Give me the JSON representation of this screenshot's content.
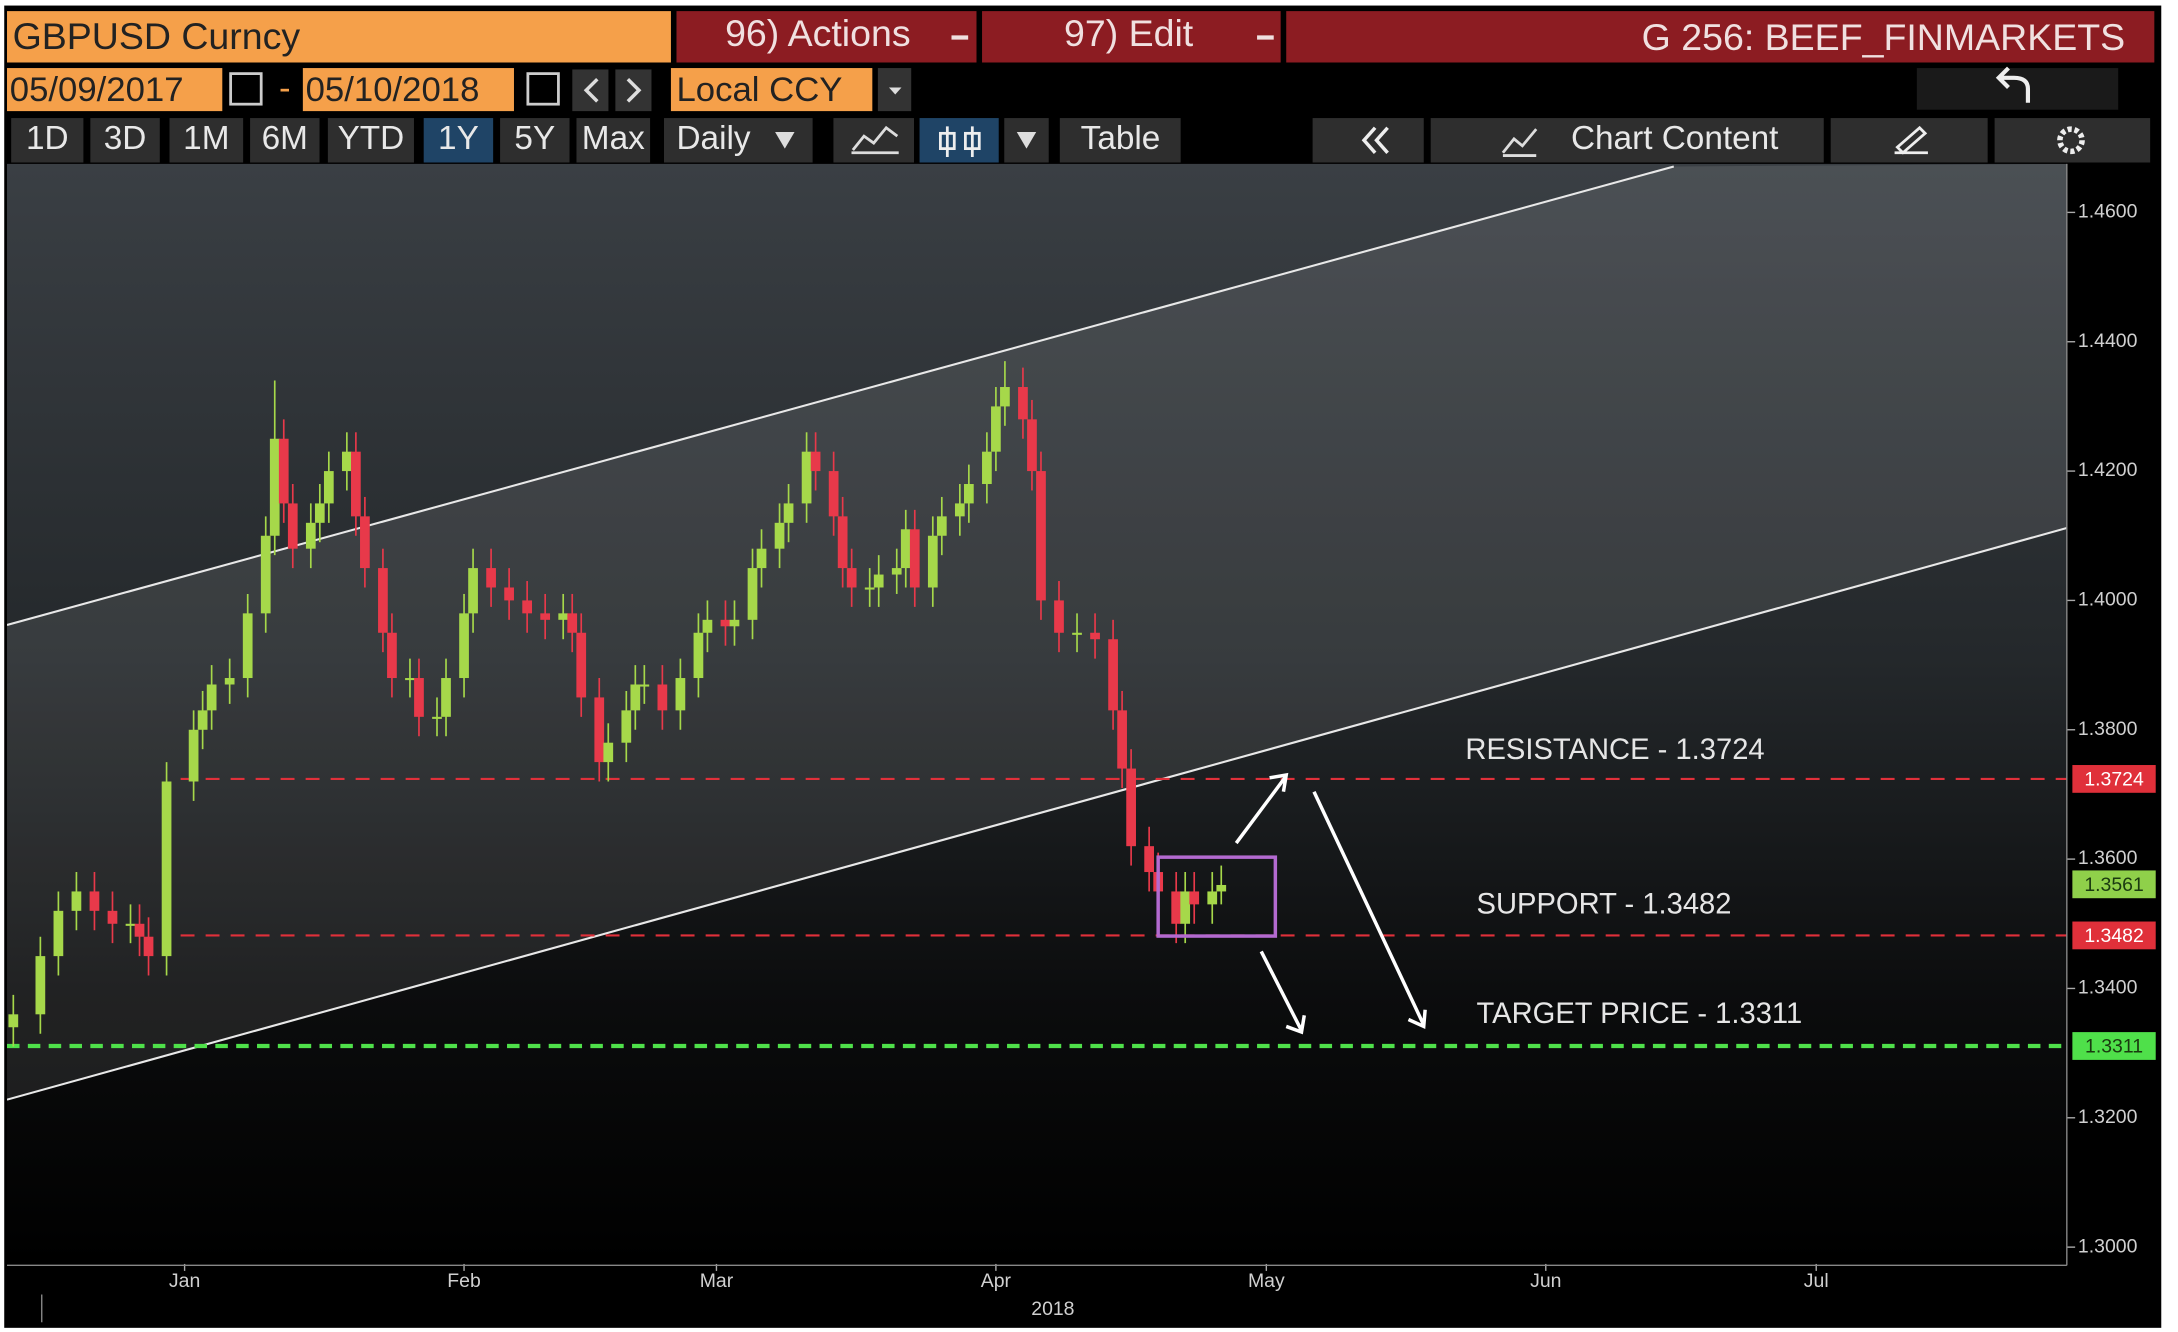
{
  "header": {
    "security": "GBPUSD Curncy",
    "actions": "96) Actions",
    "edit": "97) Edit",
    "page": "G 256: BEEF_FINMARKETS"
  },
  "dates": {
    "start": "05/09/2017",
    "separator": "-",
    "end": "05/10/2018"
  },
  "currency": "Local CCY",
  "ranges": [
    {
      "label": "1D"
    },
    {
      "label": "3D"
    },
    {
      "label": "1M"
    },
    {
      "label": "6M"
    },
    {
      "label": "YTD"
    },
    {
      "label": "1Y",
      "selected": true
    },
    {
      "label": "5Y"
    },
    {
      "label": "Max"
    }
  ],
  "period": "Daily",
  "table": "Table",
  "chart_content": "Chart Content",
  "chart_data": {
    "type": "candlestick",
    "up_color": "#a6d84a",
    "down_color": "#e8394a",
    "xlim": [
      -19.7,
      208.8
    ],
    "ylim": [
      1.2974,
      1.4675
    ],
    "xticks": [
      {
        "value": 0,
        "label": "Jan"
      },
      {
        "value": 31,
        "label": "Feb"
      },
      {
        "value": 59,
        "label": "Mar"
      },
      {
        "value": 90,
        "label": "Apr"
      },
      {
        "value": 120,
        "label": "May"
      },
      {
        "value": 151,
        "label": "Jun"
      },
      {
        "value": 181,
        "label": "Jul"
      }
    ],
    "x_label": "2018",
    "yticks": [
      {
        "value": 1.3,
        "label": "1.3000"
      },
      {
        "value": 1.32,
        "label": "1.3200"
      },
      {
        "value": 1.34,
        "label": "1.3400"
      },
      {
        "value": 1.36,
        "label": "1.3600"
      },
      {
        "value": 1.38,
        "label": "1.3800"
      },
      {
        "value": 1.4,
        "label": "1.4000"
      },
      {
        "value": 1.42,
        "label": "1.4200"
      },
      {
        "value": 1.44,
        "label": "1.4400"
      },
      {
        "value": 1.46,
        "label": "1.4600"
      }
    ],
    "x": [
      -19,
      -16,
      -14,
      -12,
      -10,
      -8,
      -6,
      -5,
      -4,
      -2,
      1,
      2,
      3,
      5,
      7,
      9,
      10,
      11,
      12,
      14,
      15,
      16,
      18,
      19,
      20,
      22,
      23,
      25,
      26,
      28,
      29,
      31,
      32,
      34,
      36,
      38,
      40,
      42,
      43,
      44,
      46,
      47,
      49,
      50,
      51,
      53,
      55,
      57,
      58,
      60,
      61,
      63,
      64,
      66,
      67,
      69,
      70,
      72,
      73,
      74,
      76,
      77,
      79,
      80,
      81,
      83,
      84,
      86,
      87,
      89,
      90,
      91,
      93,
      94,
      95,
      97,
      99,
      101,
      103,
      104,
      105,
      107,
      108,
      110,
      111,
      112,
      114,
      115
    ],
    "open": [
      1.334,
      1.336,
      1.345,
      1.352,
      1.355,
      1.352,
      1.35,
      1.35,
      1.348,
      1.345,
      1.372,
      1.38,
      1.383,
      1.387,
      1.388,
      1.398,
      1.41,
      1.425,
      1.415,
      1.408,
      1.412,
      1.415,
      1.42,
      1.423,
      1.413,
      1.405,
      1.395,
      1.388,
      1.388,
      1.382,
      1.382,
      1.388,
      1.398,
      1.405,
      1.402,
      1.4,
      1.398,
      1.397,
      1.398,
      1.395,
      1.385,
      1.375,
      1.378,
      1.383,
      1.387,
      1.387,
      1.383,
      1.388,
      1.395,
      1.397,
      1.396,
      1.397,
      1.405,
      1.408,
      1.412,
      1.415,
      1.423,
      1.42,
      1.413,
      1.405,
      1.402,
      1.402,
      1.404,
      1.405,
      1.411,
      1.402,
      1.41,
      1.413,
      1.415,
      1.418,
      1.423,
      1.43,
      1.433,
      1.428,
      1.42,
      1.4,
      1.395,
      1.395,
      1.394,
      1.383,
      1.374,
      1.362,
      1.358,
      1.355,
      1.35,
      1.355,
      1.353,
      1.355
    ],
    "high": [
      1.339,
      1.348,
      1.355,
      1.358,
      1.358,
      1.355,
      1.353,
      1.353,
      1.351,
      1.375,
      1.383,
      1.386,
      1.39,
      1.391,
      1.401,
      1.413,
      1.434,
      1.428,
      1.418,
      1.415,
      1.418,
      1.423,
      1.426,
      1.426,
      1.416,
      1.408,
      1.398,
      1.391,
      1.391,
      1.385,
      1.391,
      1.401,
      1.408,
      1.408,
      1.405,
      1.403,
      1.401,
      1.401,
      1.401,
      1.398,
      1.388,
      1.381,
      1.386,
      1.39,
      1.39,
      1.39,
      1.391,
      1.398,
      1.4,
      1.4,
      1.4,
      1.408,
      1.411,
      1.415,
      1.418,
      1.426,
      1.426,
      1.423,
      1.416,
      1.408,
      1.405,
      1.407,
      1.408,
      1.414,
      1.414,
      1.413,
      1.416,
      1.418,
      1.421,
      1.426,
      1.433,
      1.437,
      1.436,
      1.431,
      1.423,
      1.403,
      1.398,
      1.398,
      1.397,
      1.386,
      1.377,
      1.365,
      1.361,
      1.358,
      1.358,
      1.358,
      1.358,
      1.359
    ],
    "low": [
      1.331,
      1.333,
      1.342,
      1.349,
      1.349,
      1.347,
      1.347,
      1.345,
      1.342,
      1.342,
      1.369,
      1.377,
      1.38,
      1.384,
      1.385,
      1.395,
      1.407,
      1.412,
      1.405,
      1.405,
      1.409,
      1.412,
      1.417,
      1.41,
      1.402,
      1.392,
      1.385,
      1.385,
      1.379,
      1.379,
      1.379,
      1.385,
      1.395,
      1.399,
      1.397,
      1.395,
      1.394,
      1.394,
      1.392,
      1.382,
      1.372,
      1.372,
      1.375,
      1.38,
      1.384,
      1.38,
      1.38,
      1.385,
      1.392,
      1.393,
      1.393,
      1.394,
      1.402,
      1.405,
      1.409,
      1.412,
      1.417,
      1.41,
      1.402,
      1.399,
      1.399,
      1.399,
      1.401,
      1.402,
      1.399,
      1.399,
      1.407,
      1.41,
      1.412,
      1.415,
      1.42,
      1.427,
      1.425,
      1.417,
      1.397,
      1.392,
      1.392,
      1.391,
      1.38,
      1.371,
      1.359,
      1.355,
      1.352,
      1.347,
      1.347,
      1.35,
      1.35,
      1.353
    ],
    "close": [
      1.336,
      1.345,
      1.352,
      1.355,
      1.352,
      1.35,
      1.35,
      1.348,
      1.345,
      1.372,
      1.38,
      1.383,
      1.387,
      1.388,
      1.398,
      1.41,
      1.425,
      1.415,
      1.408,
      1.412,
      1.415,
      1.42,
      1.423,
      1.413,
      1.405,
      1.395,
      1.388,
      1.388,
      1.382,
      1.382,
      1.388,
      1.398,
      1.405,
      1.402,
      1.4,
      1.398,
      1.397,
      1.398,
      1.395,
      1.385,
      1.375,
      1.378,
      1.383,
      1.387,
      1.387,
      1.383,
      1.388,
      1.395,
      1.397,
      1.396,
      1.397,
      1.405,
      1.408,
      1.412,
      1.415,
      1.423,
      1.42,
      1.413,
      1.405,
      1.402,
      1.402,
      1.404,
      1.405,
      1.411,
      1.402,
      1.41,
      1.413,
      1.415,
      1.418,
      1.423,
      1.43,
      1.433,
      1.428,
      1.42,
      1.4,
      1.395,
      1.395,
      1.394,
      1.383,
      1.374,
      1.362,
      1.358,
      1.355,
      1.35,
      1.355,
      1.353,
      1.355,
      1.356
    ],
    "channel": [
      {
        "x": [
          -19.7,
          165.2
        ],
        "y": [
          1.3962,
          1.4671
        ]
      },
      {
        "x": [
          -19.7,
          208.8
        ],
        "y": [
          1.3228,
          1.4112
        ]
      }
    ],
    "levels": [
      {
        "value": 1.3724,
        "color": "#e0303a",
        "label": "RESISTANCE - 1.3724"
      },
      {
        "value": 1.3482,
        "color": "#e0303a",
        "label": "SUPPORT - 1.3482"
      },
      {
        "value": 1.3311,
        "color": "#4fe04a",
        "label": "TARGET PRICE - 1.3311"
      }
    ],
    "last_price": 1.3561,
    "box": {
      "x": [
        108,
        121
      ],
      "y": [
        1.3481,
        1.3603
      ],
      "color": "#b36ad0"
    }
  }
}
